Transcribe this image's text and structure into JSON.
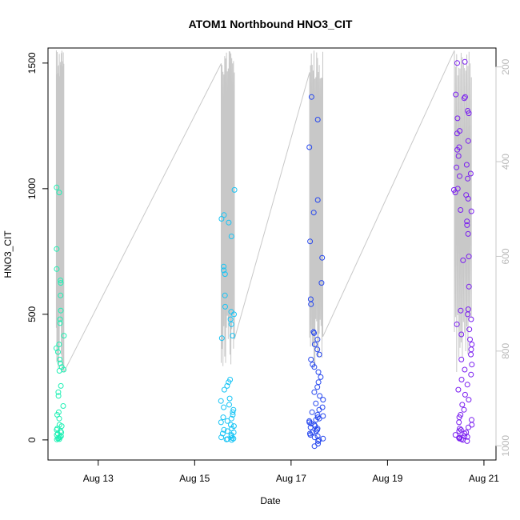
{
  "chart_data": {
    "type": "scatter",
    "title": "ATOM1 Northbound HNO3_CIT",
    "xlabel": "Date",
    "ylabel": "HNO3_CIT",
    "x_ticks": [
      "Aug 13",
      "Aug 15",
      "Aug 17",
      "Aug 19",
      "Aug 21"
    ],
    "y_ticks": [
      "0",
      "500",
      "1000",
      "1500"
    ],
    "y_ticks_right": [
      "200",
      "400",
      "600",
      "800",
      "1000"
    ],
    "xlim": [
      "2016-08-11T23:00",
      "2016-08-21T06:00"
    ],
    "ylim": [
      -80,
      1560
    ],
    "y2lim": [
      1030,
      160
    ],
    "grid": false,
    "legend": "none",
    "secondary_axis_color": "#c8c8c8",
    "profile_color": "#c8c8c8",
    "groups": [
      {
        "color": "#1ef0b4",
        "x_range": [
          "2016-08-12T03:00",
          "2016-08-12T07:00"
        ],
        "y_points": [
          1005,
          985,
          760,
          680,
          635,
          625,
          575,
          515,
          480,
          465,
          415,
          380,
          365,
          350,
          320,
          305,
          290,
          280,
          275,
          215,
          190,
          175,
          135,
          110,
          100,
          85,
          60,
          55,
          45,
          40,
          35,
          30,
          25,
          20,
          15,
          12,
          10,
          8,
          5,
          3,
          2
        ]
      },
      {
        "color": "#17c4f5",
        "x_range": [
          "2016-08-15T13:00",
          "2016-08-15T20:00"
        ],
        "y_points": [
          995,
          895,
          880,
          865,
          810,
          690,
          675,
          660,
          575,
          530,
          510,
          500,
          480,
          460,
          415,
          405,
          240,
          230,
          215,
          200,
          165,
          155,
          140,
          130,
          120,
          110,
          100,
          90,
          85,
          75,
          70,
          60,
          55,
          45,
          40,
          35,
          30,
          25,
          20,
          15,
          10,
          8,
          5,
          3,
          2,
          0
        ]
      },
      {
        "color": "#2546ee",
        "x_range": [
          "2016-08-17T09:00",
          "2016-08-17T16:00"
        ],
        "y_points": [
          1365,
          1275,
          1165,
          955,
          905,
          790,
          725,
          625,
          560,
          540,
          430,
          425,
          400,
          380,
          360,
          340,
          320,
          300,
          290,
          270,
          250,
          230,
          210,
          190,
          175,
          160,
          145,
          130,
          120,
          110,
          100,
          95,
          90,
          85,
          80,
          75,
          70,
          65,
          60,
          55,
          50,
          45,
          40,
          35,
          30,
          25,
          20,
          15,
          10,
          5,
          0,
          -5,
          -15,
          -25
        ]
      },
      {
        "color": "#7a1ef0",
        "x_range": [
          "2016-08-20T09:00",
          "2016-08-20T18:00"
        ],
        "y_points": [
          1505,
          1500,
          1375,
          1365,
          1360,
          1310,
          1300,
          1280,
          1230,
          1220,
          1190,
          1165,
          1155,
          1130,
          1095,
          1085,
          1060,
          1050,
          1040,
          1000,
          995,
          985,
          975,
          960,
          915,
          910,
          870,
          855,
          820,
          730,
          715,
          610,
          520,
          515,
          500,
          480,
          460,
          440,
          420,
          400,
          380,
          360,
          340,
          320,
          300,
          280,
          260,
          240,
          220,
          200,
          180,
          160,
          140,
          120,
          100,
          90,
          80,
          70,
          60,
          50,
          45,
          40,
          35,
          30,
          25,
          20,
          15,
          12,
          10,
          8,
          5,
          3,
          0,
          -5
        ]
      }
    ]
  }
}
